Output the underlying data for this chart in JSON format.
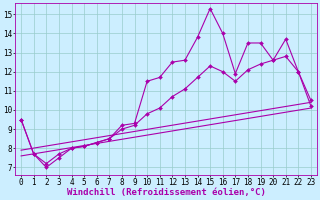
{
  "xlabel": "Windchill (Refroidissement éolien,°C)",
  "bg_color": "#cceeff",
  "grid_color": "#99cccc",
  "line_color": "#aa00aa",
  "xlim": [
    -0.5,
    23.5
  ],
  "ylim": [
    6.6,
    15.6
  ],
  "xticks": [
    0,
    1,
    2,
    3,
    4,
    5,
    6,
    7,
    8,
    9,
    10,
    11,
    12,
    13,
    14,
    15,
    16,
    17,
    18,
    19,
    20,
    21,
    22,
    23
  ],
  "yticks": [
    7,
    8,
    9,
    10,
    11,
    12,
    13,
    14,
    15
  ],
  "series_main_x": [
    0,
    1,
    2,
    3,
    4,
    5,
    6,
    7,
    8,
    9,
    10,
    11,
    12,
    13,
    14,
    15,
    16,
    17,
    18,
    19,
    20,
    21,
    22,
    23
  ],
  "series_main_y": [
    9.5,
    7.7,
    7.0,
    7.5,
    8.0,
    8.1,
    8.3,
    8.5,
    9.2,
    9.3,
    11.5,
    11.7,
    12.5,
    12.6,
    13.8,
    15.3,
    14.0,
    11.9,
    13.5,
    13.5,
    12.6,
    13.7,
    12.0,
    10.5
  ],
  "series_smooth_x": [
    0,
    1,
    2,
    3,
    4,
    5,
    6,
    7,
    8,
    9,
    10,
    11,
    12,
    13,
    14,
    15,
    16,
    17,
    18,
    19,
    20,
    21,
    22,
    23
  ],
  "series_smooth_y": [
    9.5,
    7.7,
    7.2,
    7.7,
    8.0,
    8.1,
    8.3,
    8.5,
    9.0,
    9.2,
    9.8,
    10.1,
    10.7,
    11.1,
    11.7,
    12.3,
    12.0,
    11.5,
    12.1,
    12.4,
    12.6,
    12.8,
    12.0,
    10.2
  ],
  "trend1_x": [
    0,
    23
  ],
  "trend1_y": [
    7.6,
    10.1
  ],
  "trend2_x": [
    0,
    23
  ],
  "trend2_y": [
    7.9,
    10.4
  ],
  "marker": "D",
  "markersize": 2.0,
  "linewidth": 0.8,
  "xlabel_fontsize": 6.5,
  "tick_fontsize": 5.5
}
